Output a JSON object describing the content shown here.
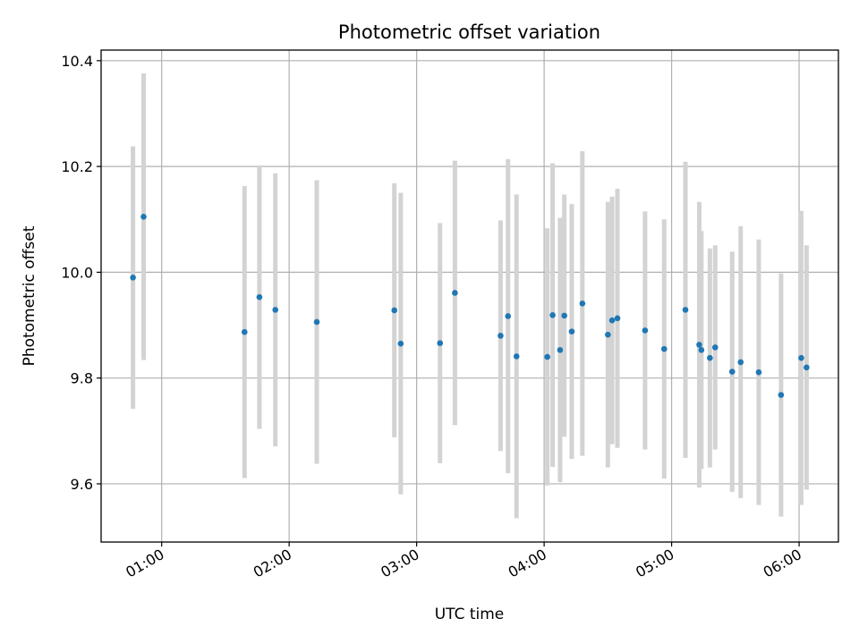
{
  "chart_data": {
    "type": "scatter",
    "title": "Photometric offset variation",
    "xlabel": "UTC time",
    "ylabel": "Photometric offset",
    "x_ticks": [
      "01:00",
      "02:00",
      "03:00",
      "04:00",
      "05:00",
      "06:00"
    ],
    "y_ticks": [
      "9.6",
      "9.8",
      "10.0",
      "10.2",
      "10.4"
    ],
    "xlim": [
      "00:31:30",
      "06:18:30"
    ],
    "ylim": [
      9.49,
      10.42
    ],
    "grid": true,
    "colors": {
      "marker": "#1f77b4",
      "errorbar": "#d3d3d3",
      "grid": "#b0b0b0"
    },
    "points": [
      {
        "x": "00:46:30",
        "y": 9.99,
        "err": 0.248
      },
      {
        "x": "00:51:30",
        "y": 10.105,
        "err": 0.271
      },
      {
        "x": "01:39:00",
        "y": 9.887,
        "err": 0.276
      },
      {
        "x": "01:46:00",
        "y": 9.953,
        "err": 0.249
      },
      {
        "x": "01:53:30",
        "y": 9.929,
        "err": 0.258
      },
      {
        "x": "02:13:00",
        "y": 9.906,
        "err": 0.268
      },
      {
        "x": "02:49:30",
        "y": 9.928,
        "err": 0.24
      },
      {
        "x": "02:52:30",
        "y": 9.865,
        "err": 0.285
      },
      {
        "x": "03:11:00",
        "y": 9.866,
        "err": 0.227
      },
      {
        "x": "03:18:00",
        "y": 9.961,
        "err": 0.25
      },
      {
        "x": "03:39:30",
        "y": 9.88,
        "err": 0.218
      },
      {
        "x": "03:43:00",
        "y": 9.917,
        "err": 0.297
      },
      {
        "x": "03:47:00",
        "y": 9.841,
        "err": 0.306
      },
      {
        "x": "04:01:30",
        "y": 9.84,
        "err": 0.243
      },
      {
        "x": "04:04:00",
        "y": 9.919,
        "err": 0.287
      },
      {
        "x": "04:07:30",
        "y": 9.853,
        "err": 0.25
      },
      {
        "x": "04:09:30",
        "y": 9.918,
        "err": 0.229
      },
      {
        "x": "04:13:00",
        "y": 9.888,
        "err": 0.241
      },
      {
        "x": "04:18:00",
        "y": 9.941,
        "err": 0.288
      },
      {
        "x": "04:30:00",
        "y": 9.882,
        "err": 0.251
      },
      {
        "x": "04:32:00",
        "y": 9.909,
        "err": 0.234
      },
      {
        "x": "04:34:30",
        "y": 9.913,
        "err": 0.245
      },
      {
        "x": "04:47:30",
        "y": 9.89,
        "err": 0.225
      },
      {
        "x": "04:56:30",
        "y": 9.855,
        "err": 0.245
      },
      {
        "x": "05:06:30",
        "y": 9.929,
        "err": 0.28
      },
      {
        "x": "05:13:00",
        "y": 9.863,
        "err": 0.27
      },
      {
        "x": "05:14:00",
        "y": 9.853,
        "err": 0.225
      },
      {
        "x": "05:18:00",
        "y": 9.838,
        "err": 0.207
      },
      {
        "x": "05:20:30",
        "y": 9.858,
        "err": 0.193
      },
      {
        "x": "05:28:30",
        "y": 9.812,
        "err": 0.227
      },
      {
        "x": "05:32:30",
        "y": 9.83,
        "err": 0.257
      },
      {
        "x": "05:41:00",
        "y": 9.811,
        "err": 0.251
      },
      {
        "x": "05:51:30",
        "y": 9.768,
        "err": 0.23
      },
      {
        "x": "06:01:00",
        "y": 9.838,
        "err": 0.278
      },
      {
        "x": "06:03:30",
        "y": 9.82,
        "err": 0.231
      }
    ]
  }
}
